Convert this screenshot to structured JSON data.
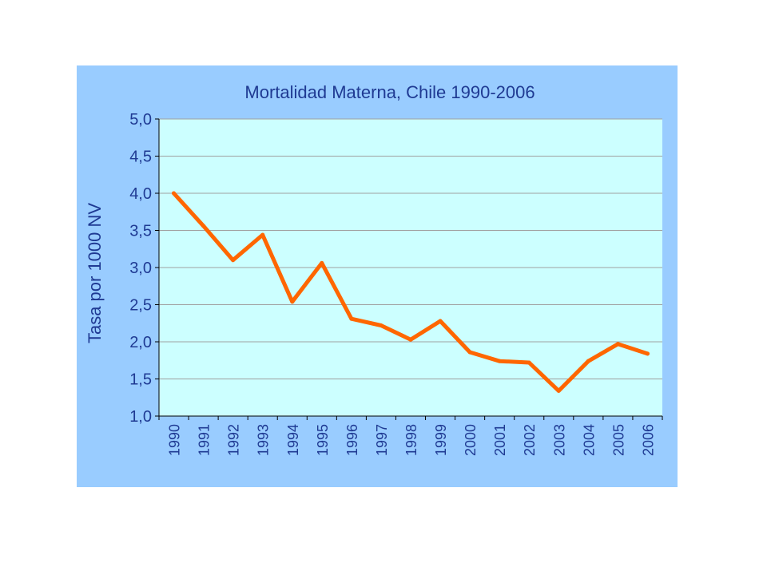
{
  "chart_data": {
    "type": "line",
    "title": "Mortalidad Materna, Chile 1990-2006",
    "ylabel": "Tasa por 1000 NV",
    "xlabel": "",
    "categories": [
      "1990",
      "1991",
      "1992",
      "1993",
      "1994",
      "1995",
      "1996",
      "1997",
      "1998",
      "1999",
      "2000",
      "2001",
      "2002",
      "2003",
      "2004",
      "2005",
      "2006"
    ],
    "series": [
      {
        "values": [
          4.0,
          3.56,
          3.1,
          3.44,
          2.54,
          3.06,
          2.31,
          2.22,
          2.03,
          2.28,
          1.86,
          1.74,
          1.72,
          1.34,
          1.74,
          1.97,
          1.84
        ]
      }
    ],
    "ylim": [
      1.0,
      5.0
    ],
    "yticks": [
      "1,0",
      "1,5",
      "2,0",
      "2,5",
      "3,0",
      "3,5",
      "4,0",
      "4,5",
      "5,0"
    ],
    "ytick_values": [
      1.0,
      1.5,
      2.0,
      2.5,
      3.0,
      3.5,
      4.0,
      4.5,
      5.0
    ],
    "grid": true,
    "legend": "none",
    "colors": {
      "line": "#ff6600",
      "plot_background": "#ccffff",
      "frame_background": "#99ccff",
      "text": "#1f3a93",
      "grid": "#a0a0a0"
    }
  }
}
